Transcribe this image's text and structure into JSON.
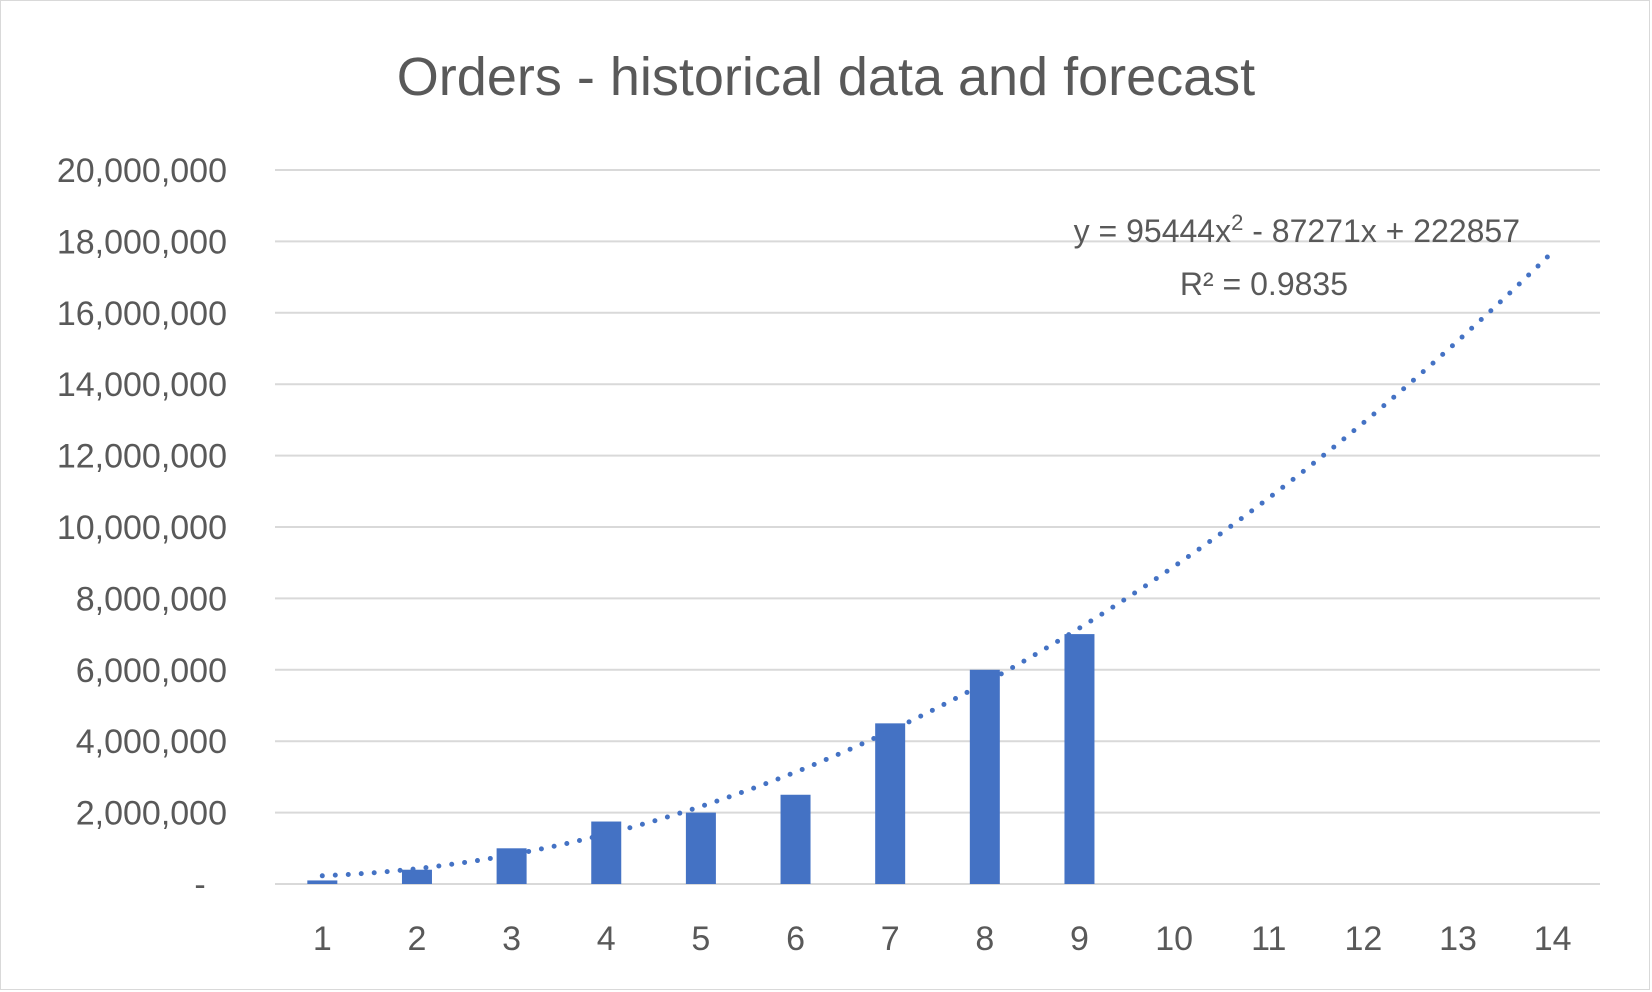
{
  "chart_data": {
    "type": "bar",
    "title": "Orders - historical data and forecast",
    "xlabel": "",
    "ylabel": "",
    "categories": [
      "1",
      "2",
      "3",
      "4",
      "5",
      "6",
      "7",
      "8",
      "9",
      "10",
      "11",
      "12",
      "13",
      "14"
    ],
    "series": [
      {
        "values": [
          100000,
          400000,
          1000000,
          1750000,
          2000000,
          2500000,
          4500000,
          6000000,
          7000000,
          null,
          null,
          null,
          null,
          null
        ],
        "color": "#4472C4"
      }
    ],
    "trendline": {
      "type": "polynomial",
      "order": 2,
      "coefficients": [
        95444,
        -87271,
        222857
      ],
      "x_range": [
        1,
        14
      ],
      "style": "dotted",
      "color": "#4472C4",
      "equation_label": "y = 95444x² - 87271x + 222857",
      "r2_label": "R² = 0.9835"
    },
    "ylim": [
      0,
      20000000
    ],
    "y_ticks": [
      0,
      2000000,
      4000000,
      6000000,
      8000000,
      10000000,
      12000000,
      14000000,
      16000000,
      18000000,
      20000000
    ],
    "y_tick_labels": [
      "-",
      "2,000,000",
      "4,000,000",
      "6,000,000",
      "8,000,000",
      "10,000,000",
      "12,000,000",
      "14,000,000",
      "16,000,000",
      "18,000,000",
      "20,000,000"
    ],
    "grid": true,
    "legend": "none",
    "colors": {
      "bar": "#4472C4",
      "grid": "#d9d9d9",
      "text": "#595959"
    }
  }
}
